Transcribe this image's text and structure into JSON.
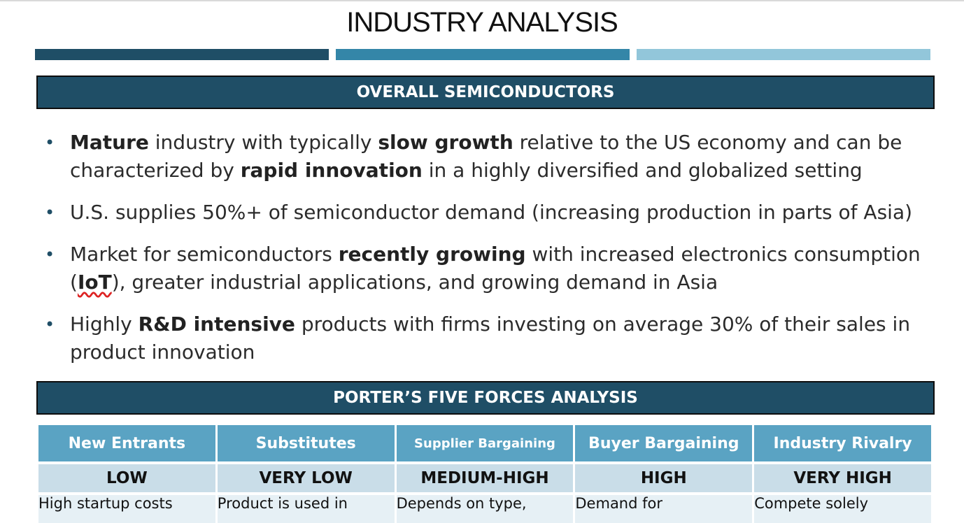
{
  "title": "INDUSTRY ANALYSIS",
  "section1": {
    "header": "OVERALL SEMICONDUCTORS",
    "bullets": [
      [
        {
          "t": "Mature",
          "b": true
        },
        {
          "t": " industry with typically ",
          "b": false
        },
        {
          "t": "slow growth",
          "b": true
        },
        {
          "t": " relative to the US economy and can be characterized by ",
          "b": false
        },
        {
          "t": "rapid innovation",
          "b": true
        },
        {
          "t": " in a highly diversified and globalized setting",
          "b": false
        }
      ],
      [
        {
          "t": "U.S. supplies 50%+ of semiconductor demand (increasing production in parts of Asia)",
          "b": false
        }
      ],
      [
        {
          "t": "Market for semiconductors ",
          "b": false
        },
        {
          "t": "recently growing",
          "b": true
        },
        {
          "t": " with increased electronics consumption (",
          "b": false
        },
        {
          "t": "IoT",
          "b": true,
          "spell": true
        },
        {
          "t": "), greater industrial applications, and growing demand in Asia",
          "b": false
        }
      ],
      [
        {
          "t": "Highly ",
          "b": false
        },
        {
          "t": "R&D intensive",
          "b": true
        },
        {
          "t": " products with firms investing on average 30% of their sales in product innovation",
          "b": false
        }
      ]
    ]
  },
  "section2": {
    "header": "PORTER’S FIVE FORCES ANALYSIS",
    "columns": [
      {
        "name": "New Entrants",
        "level": "LOW",
        "desc": "High startup costs"
      },
      {
        "name": "Substitutes",
        "level": "VERY LOW",
        "desc": "Product is used in"
      },
      {
        "name": "Supplier Bargaining",
        "level": "MEDIUM-HIGH",
        "desc": "Depends on type,"
      },
      {
        "name": "Buyer Bargaining",
        "level": "HIGH",
        "desc": "Demand for"
      },
      {
        "name": "Industry Rivalry",
        "level": "VERY HIGH",
        "desc": "Compete solely"
      }
    ]
  },
  "colors": {
    "dark_blue": "#1f4e66",
    "mid_blue": "#3486a8",
    "light_blue": "#92c6da",
    "table_header": "#5aa3c3",
    "table_level": "#c9dde8",
    "table_desc": "#e6f0f5"
  }
}
